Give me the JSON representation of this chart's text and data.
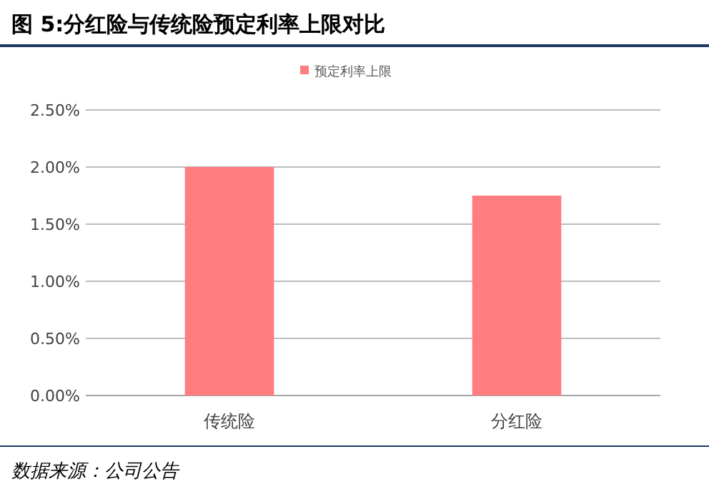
{
  "chart_data": {
    "type": "bar",
    "title": "图 5:分红险与传统险预定利率上限对比",
    "categories": [
      "传统险",
      "分红险"
    ],
    "series": [
      {
        "name": "预定利率上限",
        "color": "#ff7c80",
        "values": [
          2.0,
          1.75
        ]
      }
    ],
    "ylim": [
      0,
      2.5
    ],
    "yticks": [
      {
        "value": 0,
        "label": "0.00%"
      },
      {
        "value": 0.5,
        "label": "0.50%"
      },
      {
        "value": 1,
        "label": "1.00%"
      },
      {
        "value": 1.5,
        "label": "1.50%"
      },
      {
        "value": 2,
        "label": "2.00%"
      },
      {
        "value": 2.5,
        "label": "2.50%"
      }
    ],
    "grid": "y",
    "legend": "top",
    "annotations": [
      "数据来源：公司公告"
    ]
  }
}
